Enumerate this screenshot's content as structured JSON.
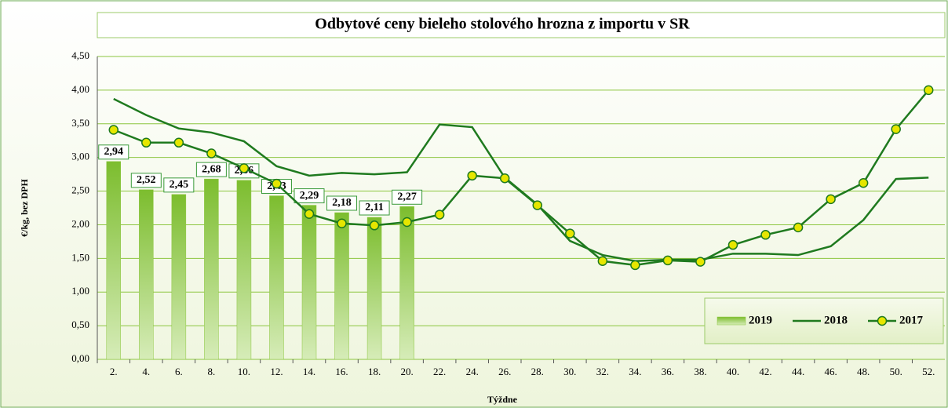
{
  "chart_data": {
    "type": "combo",
    "title": "Odbytové ceny bieleho stolového hrozna z importu v SR",
    "y_label": "€/kg, bez DPH",
    "x_label": "Týždne",
    "categories": [
      "2.",
      "4.",
      "6.",
      "8.",
      "10.",
      "12.",
      "14.",
      "16.",
      "18.",
      "20.",
      "22.",
      "24.",
      "26.",
      "28.",
      "30.",
      "32.",
      "34.",
      "36.",
      "38.",
      "40.",
      "42.",
      "44.",
      "46.",
      "48.",
      "50.",
      "52."
    ],
    "ylim": [
      0,
      4.5
    ],
    "yticks": [
      {
        "value": 0,
        "label": "0,00"
      },
      {
        "value": 0.5,
        "label": "0,50"
      },
      {
        "value": 1,
        "label": "1,00"
      },
      {
        "value": 1.5,
        "label": "1,50"
      },
      {
        "value": 2,
        "label": "2,00"
      },
      {
        "value": 2.5,
        "label": "2,50"
      },
      {
        "value": 3,
        "label": "3,00"
      },
      {
        "value": 3.5,
        "label": "3,50"
      },
      {
        "value": 4,
        "label": "4,00"
      },
      {
        "value": 4.5,
        "label": "4,50"
      }
    ],
    "grid": true,
    "legend": "lower right",
    "series": [
      {
        "name": "2019",
        "type": "bar",
        "color": "#8cc63f",
        "values": [
          2.94,
          2.52,
          2.45,
          2.68,
          2.66,
          2.43,
          2.29,
          2.18,
          2.11,
          2.27,
          null,
          null,
          null,
          null,
          null,
          null,
          null,
          null,
          null,
          null,
          null,
          null,
          null,
          null,
          null,
          null
        ],
        "value_labels": [
          "2,94",
          "2,52",
          "2,45",
          "2,68",
          "2,66",
          "2,43",
          "2,29",
          "2,18",
          "2,11",
          "2,27",
          null,
          null,
          null,
          null,
          null,
          null,
          null,
          null,
          null,
          null,
          null,
          null,
          null,
          null,
          null,
          null
        ]
      },
      {
        "name": "2018",
        "type": "line",
        "color": "#1f7a1f",
        "values": [
          3.87,
          3.63,
          3.43,
          3.37,
          3.24,
          2.87,
          2.73,
          2.77,
          2.75,
          2.78,
          3.49,
          3.45,
          2.7,
          2.3,
          1.76,
          1.55,
          1.46,
          1.48,
          1.48,
          1.57,
          1.57,
          1.55,
          1.68,
          2.07,
          2.68,
          2.7
        ]
      },
      {
        "name": "2017",
        "type": "line",
        "marker": true,
        "color": "#1f7a1f",
        "marker_color": "#e6e600",
        "values": [
          3.41,
          3.22,
          3.22,
          3.06,
          2.84,
          2.61,
          2.16,
          2.02,
          1.99,
          2.04,
          2.15,
          2.73,
          2.69,
          2.29,
          1.87,
          1.46,
          1.4,
          1.47,
          1.45,
          1.7,
          1.85,
          1.96,
          2.38,
          2.62,
          3.42,
          4.0
        ]
      }
    ]
  }
}
